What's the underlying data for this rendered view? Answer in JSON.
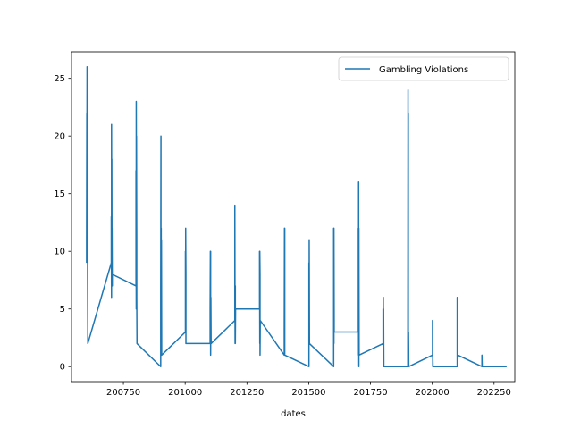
{
  "chart_data": {
    "type": "line",
    "title": "",
    "xlabel": "dates",
    "ylabel": "",
    "xlim": [
      200540,
      202334
    ],
    "ylim": [
      -1.3,
      27.3
    ],
    "xticks": [
      200750,
      201000,
      201250,
      201500,
      201750,
      202000,
      202250
    ],
    "yticks": [
      0,
      5,
      10,
      15,
      20,
      25
    ],
    "grid": false,
    "legend": {
      "placement": "top-right"
    },
    "series": [
      {
        "name": "Gambling Violations",
        "color": "#1f77b4",
        "points": [
          [
            200601,
            9
          ],
          [
            200601,
            11
          ],
          [
            200602,
            22
          ],
          [
            200602,
            10
          ],
          [
            200603,
            26
          ],
          [
            200603,
            18
          ],
          [
            200604,
            12
          ],
          [
            200604,
            20
          ],
          [
            200605,
            14
          ],
          [
            200605,
            8
          ],
          [
            200606,
            2
          ],
          [
            200701,
            9
          ],
          [
            200701,
            13
          ],
          [
            200702,
            6
          ],
          [
            200702,
            21
          ],
          [
            200703,
            10
          ],
          [
            200703,
            18
          ],
          [
            200704,
            8
          ],
          [
            200704,
            12
          ],
          [
            200705,
            7
          ],
          [
            200705,
            8
          ],
          [
            200801,
            7
          ],
          [
            200801,
            17
          ],
          [
            200802,
            5
          ],
          [
            200802,
            23
          ],
          [
            200803,
            9
          ],
          [
            200803,
            20
          ],
          [
            200804,
            11
          ],
          [
            200804,
            6
          ],
          [
            200805,
            2
          ],
          [
            200901,
            0
          ],
          [
            200901,
            7
          ],
          [
            200902,
            20
          ],
          [
            200902,
            5
          ],
          [
            200903,
            12
          ],
          [
            200903,
            9
          ],
          [
            200904,
            11
          ],
          [
            200905,
            1
          ],
          [
            201001,
            3
          ],
          [
            201001,
            10
          ],
          [
            201002,
            4
          ],
          [
            201002,
            12
          ],
          [
            201003,
            8
          ],
          [
            201003,
            2
          ],
          [
            201101,
            2
          ],
          [
            201101,
            5
          ],
          [
            201102,
            10
          ],
          [
            201102,
            3
          ],
          [
            201103,
            10
          ],
          [
            201103,
            1
          ],
          [
            201104,
            6
          ],
          [
            201105,
            2
          ],
          [
            201201,
            4
          ],
          [
            201201,
            14
          ],
          [
            201202,
            2
          ],
          [
            201202,
            5
          ],
          [
            201203,
            7
          ],
          [
            201203,
            2
          ],
          [
            201204,
            5
          ],
          [
            201301,
            5
          ],
          [
            201301,
            10
          ],
          [
            201302,
            2
          ],
          [
            201302,
            10
          ],
          [
            201303,
            8
          ],
          [
            201303,
            1
          ],
          [
            201304,
            4
          ],
          [
            201401,
            1
          ],
          [
            201401,
            3
          ],
          [
            201402,
            12
          ],
          [
            201402,
            2
          ],
          [
            201403,
            12
          ],
          [
            201403,
            1
          ],
          [
            201501,
            0
          ],
          [
            201501,
            9
          ],
          [
            201502,
            3
          ],
          [
            201502,
            11
          ],
          [
            201503,
            2
          ],
          [
            201601,
            0
          ],
          [
            201601,
            12
          ],
          [
            201602,
            2
          ],
          [
            201602,
            12
          ],
          [
            201603,
            4
          ],
          [
            201603,
            3
          ],
          [
            201701,
            3
          ],
          [
            201701,
            12
          ],
          [
            201702,
            1
          ],
          [
            201702,
            16
          ],
          [
            201703,
            0
          ],
          [
            201703,
            12
          ],
          [
            201704,
            1
          ],
          [
            201801,
            2
          ],
          [
            201801,
            5
          ],
          [
            201802,
            0
          ],
          [
            201802,
            6
          ],
          [
            201803,
            1
          ],
          [
            201803,
            5
          ],
          [
            201804,
            0
          ],
          [
            201901,
            0
          ],
          [
            201901,
            2
          ],
          [
            201902,
            24
          ],
          [
            201902,
            1
          ],
          [
            201903,
            22
          ],
          [
            201903,
            0
          ],
          [
            201904,
            3
          ],
          [
            201905,
            0
          ],
          [
            202001,
            1
          ],
          [
            202001,
            4
          ],
          [
            202002,
            0
          ],
          [
            202002,
            1
          ],
          [
            202003,
            0
          ],
          [
            202101,
            0
          ],
          [
            202101,
            6
          ],
          [
            202102,
            1
          ],
          [
            202102,
            6
          ],
          [
            202103,
            1
          ],
          [
            202201,
            0
          ],
          [
            202201,
            1
          ],
          [
            202202,
            0
          ],
          [
            202301,
            0
          ]
        ]
      }
    ]
  }
}
